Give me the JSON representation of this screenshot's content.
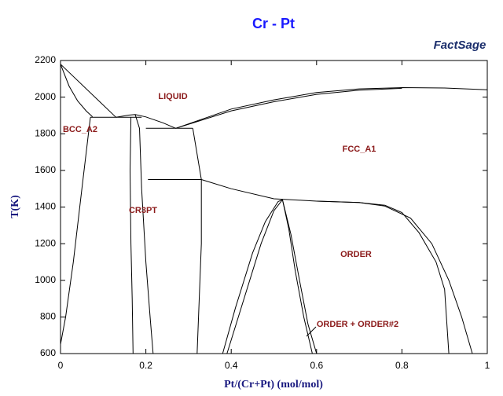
{
  "chart_data": {
    "type": "line",
    "title": "Cr - Pt",
    "logo": "FactSage",
    "x_label": "Pt/(Cr+Pt) (mol/mol)",
    "y_label": "T(K)",
    "xlim": [
      0,
      1
    ],
    "ylim": [
      600,
      2200
    ],
    "xticks": [
      0,
      0.2,
      0.4,
      0.6,
      0.8,
      1
    ],
    "yticks": [
      600,
      800,
      1000,
      1200,
      1400,
      1600,
      1800,
      2000,
      2200
    ],
    "color": "#000000",
    "annotations": [
      "LIQUID",
      "BCC_A2",
      "FCC_A1",
      "CR3PT",
      "ORDER",
      "ORDER + ORDER#2"
    ],
    "series": [
      {
        "x": [
          0,
          0.13
        ],
        "values": [
          2180,
          1890
        ]
      },
      {
        "x": [
          0,
          0.02,
          0.04,
          0.06,
          0.075
        ],
        "values": [
          2180,
          2060,
          1980,
          1925,
          1893
        ]
      },
      {
        "x": [
          0.07,
          0.19
        ],
        "values": [
          1890,
          1890
        ]
      },
      {
        "x": [
          0.07,
          0.05,
          0.03,
          0.012,
          0,
          0
        ],
        "values": [
          1890,
          1500,
          1100,
          800,
          650,
          600
        ]
      },
      {
        "x": [
          0.13,
          0.16,
          0.175,
          0.2,
          0.24,
          0.27
        ],
        "values": [
          1890,
          1902,
          1905,
          1892,
          1860,
          1830
        ]
      },
      {
        "x": [
          0.27,
          0.4,
          0.5,
          0.6,
          0.7,
          0.8,
          0.9,
          1
        ],
        "values": [
          1830,
          1935,
          1985,
          2025,
          2045,
          2052,
          2050,
          2040
        ]
      },
      {
        "x": [
          0.27,
          0.4,
          0.5,
          0.6,
          0.7,
          0.8
        ],
        "values": [
          1830,
          1925,
          1975,
          2015,
          2038,
          2048
        ]
      },
      {
        "x": [
          0.165,
          0.163,
          0.165,
          0.168,
          0.17
        ],
        "values": [
          1890,
          1600,
          1200,
          900,
          600
        ]
      },
      {
        "x": [
          0.175,
          0.185,
          0.19,
          0.2,
          0.21,
          0.217
        ],
        "values": [
          1905,
          1830,
          1500,
          1100,
          800,
          600
        ]
      },
      {
        "x": [
          0.2,
          0.31
        ],
        "values": [
          1830,
          1830
        ]
      },
      {
        "x": [
          0.31,
          0.33,
          0.33,
          0.325,
          0.32
        ],
        "values": [
          1830,
          1550,
          1200,
          900,
          600
        ]
      },
      {
        "x": [
          0.205,
          0.33
        ],
        "values": [
          1550,
          1550
        ]
      },
      {
        "x": [
          0.33,
          0.4,
          0.5,
          0.6,
          0.7,
          0.76,
          0.82,
          0.87,
          0.91,
          0.94,
          0.965
        ],
        "values": [
          1550,
          1500,
          1445,
          1432,
          1425,
          1405,
          1340,
          1200,
          1000,
          800,
          600
        ]
      },
      {
        "x": [
          0.6,
          0.7,
          0.76,
          0.8,
          0.84,
          0.88,
          0.9,
          0.91
        ],
        "values": [
          1432,
          1425,
          1410,
          1370,
          1260,
          1100,
          950,
          600
        ]
      },
      {
        "x": [
          0.38,
          0.41,
          0.45,
          0.48,
          0.51,
          0.52
        ],
        "values": [
          600,
          850,
          1150,
          1320,
          1430,
          1440
        ]
      },
      {
        "x": [
          0.39,
          0.43,
          0.47,
          0.5,
          0.52
        ],
        "values": [
          600,
          900,
          1200,
          1380,
          1440
        ]
      },
      {
        "x": [
          0.52,
          0.54,
          0.56,
          0.58,
          0.6
        ],
        "values": [
          1440,
          1250,
          1000,
          760,
          600
        ]
      },
      {
        "x": [
          0.52,
          0.535,
          0.55,
          0.57,
          0.59
        ],
        "values": [
          1440,
          1280,
          1050,
          800,
          600
        ]
      }
    ]
  }
}
